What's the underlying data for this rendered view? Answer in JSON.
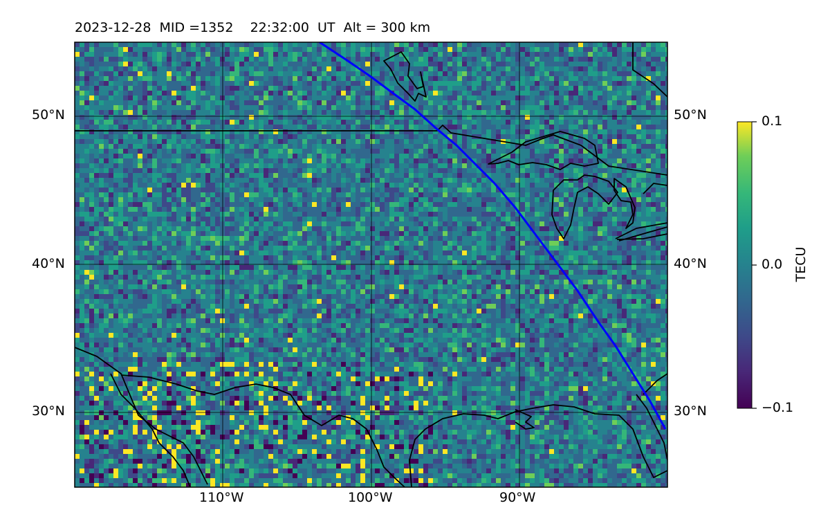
{
  "title": "2023-12-28  MID =1352    22:32:00  UT  Alt = 300 km",
  "map": {
    "lat_labels": [
      "50°N",
      "40°N",
      "30°N"
    ],
    "lon_labels": [
      "110°W",
      "100°W",
      "90°W"
    ],
    "lon_range": [
      -120,
      -80
    ],
    "lat_range": [
      25,
      55
    ]
  },
  "colorbar": {
    "label": "TECU",
    "ticks": [
      "0.1",
      "0.0",
      "−0.1"
    ],
    "vmin": -0.1,
    "vmax": 0.1,
    "colormap": "viridis"
  },
  "colors": {
    "terminator": "#0000ff",
    "coastline": "#000000"
  }
}
